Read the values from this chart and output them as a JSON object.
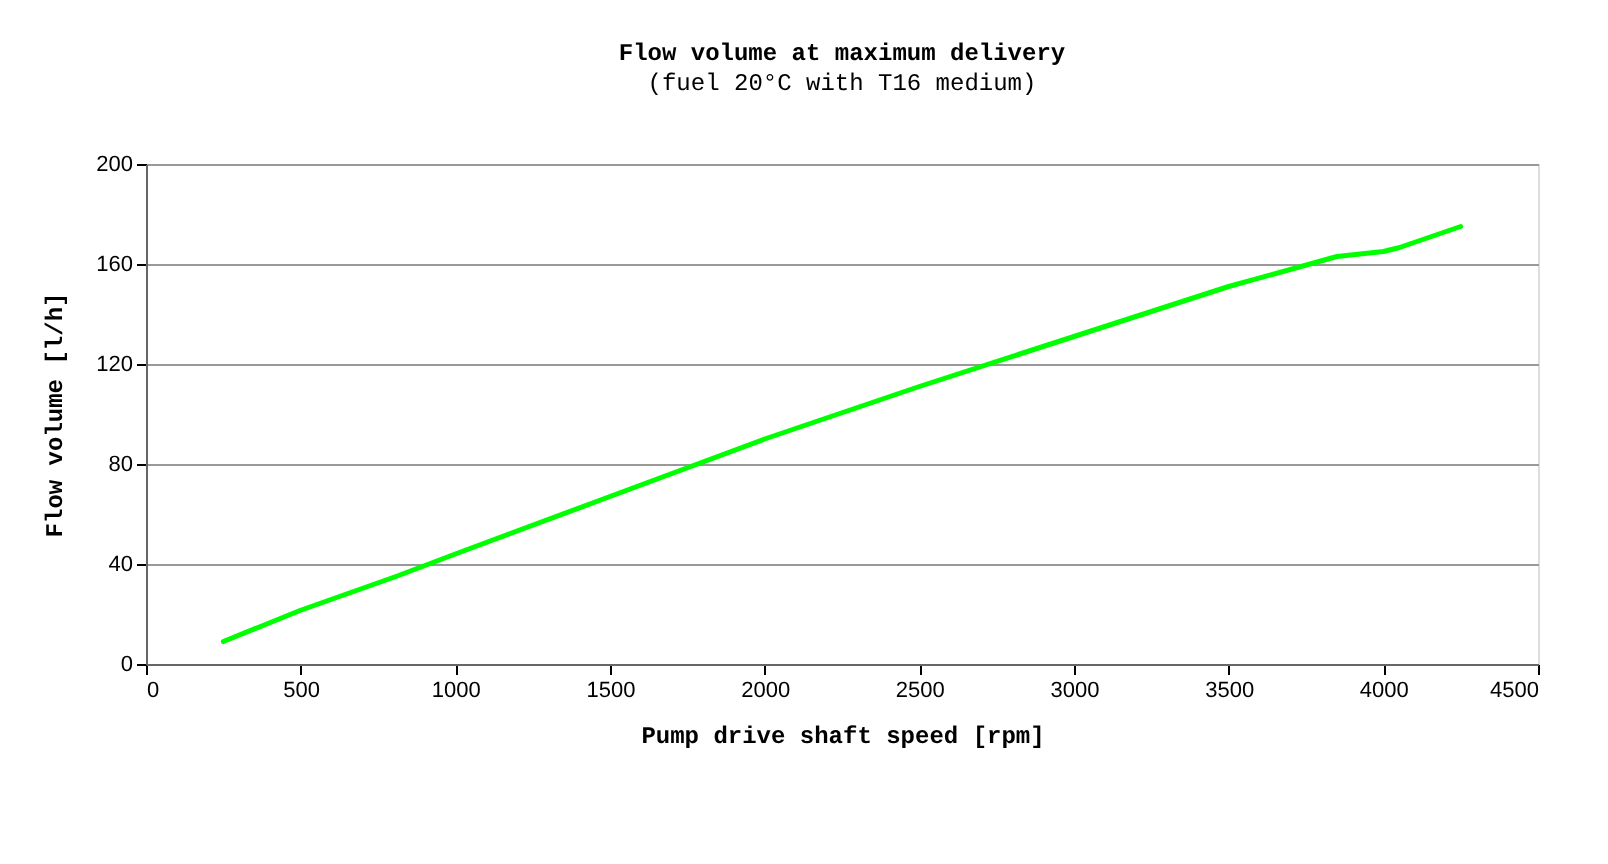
{
  "chart_data": {
    "type": "line",
    "title": "Flow volume at maximum delivery",
    "subtitle": "(fuel 20°C with T16 medium)",
    "xlabel": "Pump drive shaft speed [rpm]",
    "ylabel": "Flow volume [l/h]",
    "x": [
      250,
      500,
      808,
      1000,
      1500,
      2000,
      2500,
      3000,
      3500,
      3850,
      4000,
      4050,
      4250
    ],
    "series": [
      {
        "color": "#00ff00",
        "values": [
          9,
          21.5,
          35,
          44,
          67,
          90,
          111,
          131,
          151,
          163,
          165,
          166.5,
          175
        ]
      }
    ],
    "xlim": [
      0,
      4500
    ],
    "xticks": [
      0,
      500,
      1000,
      1500,
      2000,
      2500,
      3000,
      3500,
      4000,
      4500
    ],
    "ylim": [
      0,
      200
    ],
    "yticks": [
      0,
      40,
      80,
      120,
      160,
      200
    ],
    "grid": "y",
    "line_style": "solid",
    "marker": "none",
    "legend": false
  }
}
